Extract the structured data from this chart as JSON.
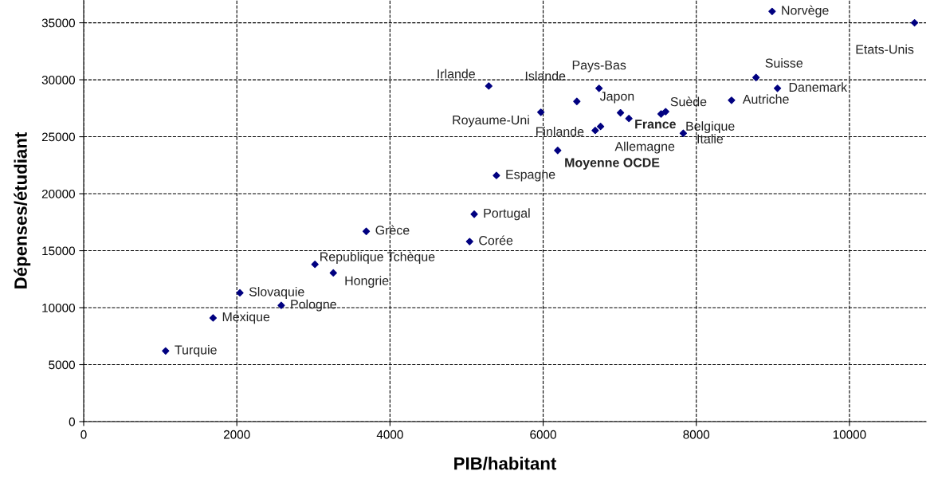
{
  "chart_data": {
    "type": "scatter",
    "xlabel": "PIB/habitant",
    "ylabel": "Dépenses/étudiant",
    "x": [
      1070,
      1690,
      2040,
      2580,
      3020,
      3260,
      3690,
      5040,
      5100,
      5390,
      6190,
      5970,
      5290,
      6440,
      6730,
      6680,
      6750,
      7010,
      7120,
      7600,
      7540,
      7830,
      8460,
      8780,
      9060,
      8990,
      10850
    ],
    "values": [
      6200,
      9100,
      11300,
      10200,
      13800,
      13050,
      16700,
      15800,
      18200,
      21600,
      23800,
      27150,
      29450,
      28100,
      29250,
      25550,
      25900,
      27100,
      26600,
      27200,
      27000,
      25300,
      28200,
      30200,
      29250,
      36000,
      35000
    ],
    "color": "#000080",
    "marker": "diamond",
    "grid": true,
    "line_style": "dashed",
    "xlim": [
      0,
      11000
    ],
    "xticks": [
      0,
      2000,
      4000,
      6000,
      8000,
      10000
    ],
    "ylim": [
      0,
      37000
    ],
    "yticks": [
      0,
      5000,
      10000,
      15000,
      20000,
      25000,
      30000,
      35000
    ],
    "annotations": [
      {
        "text": "Turquie",
        "x": 1070,
        "y": 6200
      },
      {
        "text": "Mexique",
        "x": 1690,
        "y": 9100
      },
      {
        "text": "Slovaquie",
        "x": 2040,
        "y": 11300
      },
      {
        "text": "Pologne",
        "x": 2580,
        "y": 10200
      },
      {
        "text": "Republique Tchèque",
        "x": 3020,
        "y": 13800
      },
      {
        "text": "Hongrie",
        "x": 3260,
        "y": 13050
      },
      {
        "text": "Grèce",
        "x": 3690,
        "y": 16700
      },
      {
        "text": "Corée",
        "x": 5040,
        "y": 15800
      },
      {
        "text": "Portugal",
        "x": 5100,
        "y": 18200
      },
      {
        "text": "Espagne",
        "x": 5390,
        "y": 21600
      },
      {
        "text": "Moyenne OCDE",
        "x": 6190,
        "y": 23800
      },
      {
        "text": "Royaume-Uni",
        "x": 5970,
        "y": 27150
      },
      {
        "text": "Irlande",
        "x": 5290,
        "y": 29450
      },
      {
        "text": "Islande",
        "x": 6440,
        "y": 28100
      },
      {
        "text": "Pays-Bas",
        "x": 6730,
        "y": 29250
      },
      {
        "text": "Finlande",
        "x": 6680,
        "y": 25550
      },
      {
        "text": "Allemagne",
        "x": 6750,
        "y": 25900
      },
      {
        "text": "Japon",
        "x": 7010,
        "y": 27100
      },
      {
        "text": "France",
        "x": 7120,
        "y": 26600
      },
      {
        "text": "Suède",
        "x": 7600,
        "y": 27200
      },
      {
        "text": "Belgique",
        "x": 7540,
        "y": 27000
      },
      {
        "text": "Italie",
        "x": 7830,
        "y": 25300
      },
      {
        "text": "Autriche",
        "x": 8460,
        "y": 28200
      },
      {
        "text": "Suisse",
        "x": 8780,
        "y": 30200
      },
      {
        "text": "Danemark",
        "x": 9060,
        "y": 29250
      },
      {
        "text": "Norvège",
        "x": 8990,
        "y": 36000
      },
      {
        "text": "Etats-Unis",
        "x": 10850,
        "y": 35000
      }
    ]
  }
}
